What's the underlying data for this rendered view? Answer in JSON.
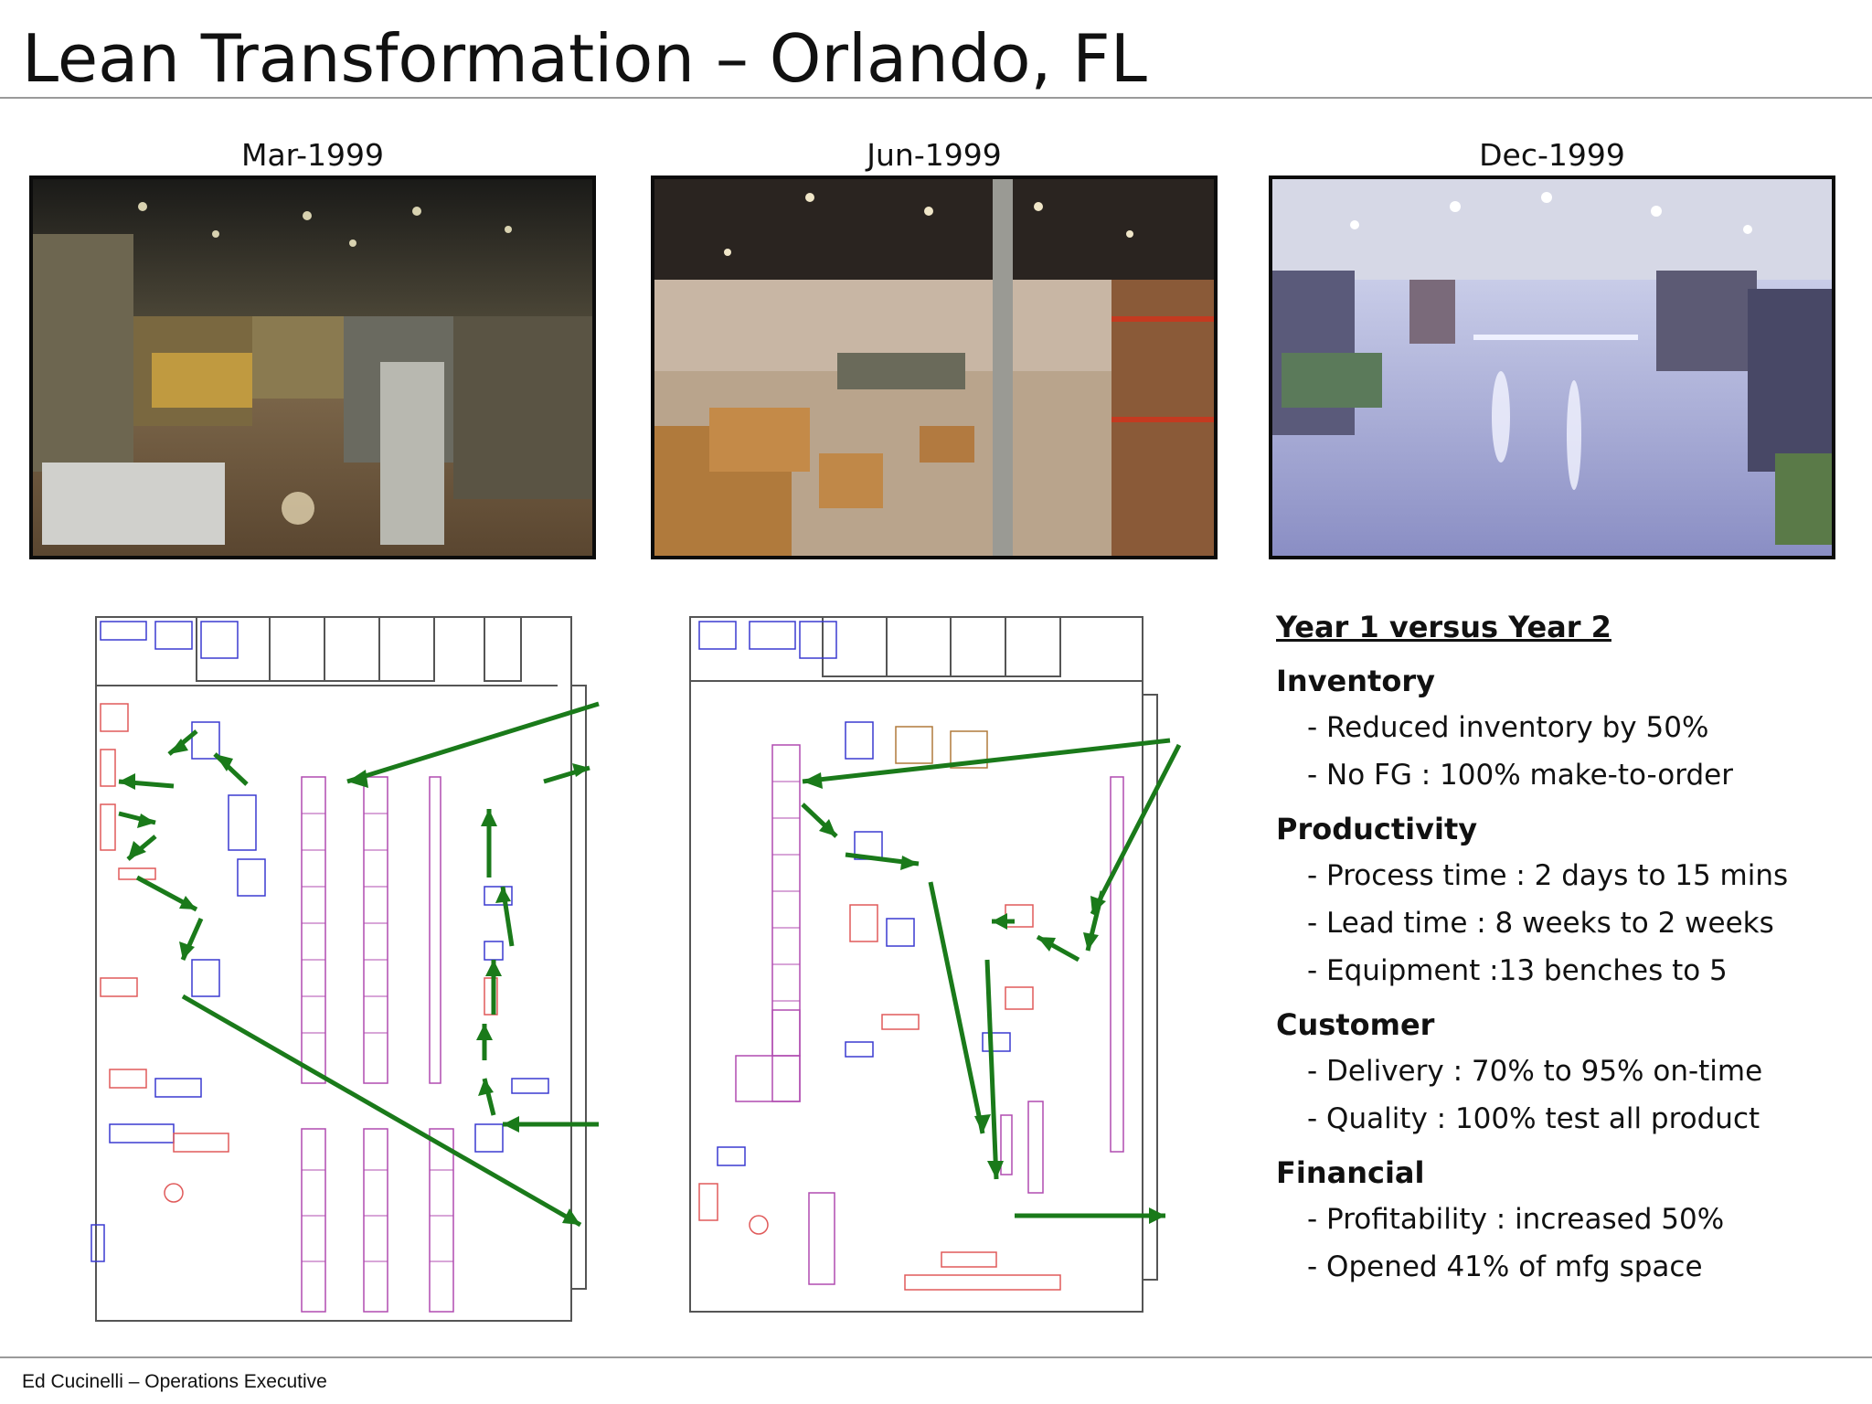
{
  "slide": {
    "title": "Lean Transformation – Orlando, FL",
    "footer": "Ed Cucinelli – Operations Executive"
  },
  "photos": [
    {
      "label": "Mar-1999"
    },
    {
      "label": "Jun-1999"
    },
    {
      "label": "Dec-1999"
    }
  ],
  "summary": {
    "heading": "Year 1 versus Year 2",
    "sections": [
      {
        "name": "Inventory",
        "items": [
          "- Reduced inventory by 50%",
          "- No FG : 100% make-to-order"
        ]
      },
      {
        "name": "Productivity",
        "items": [
          "- Process time : 2 days to 15 mins",
          "- Lead time : 8 weeks to 2 weeks",
          "- Equipment :13 benches to 5"
        ]
      },
      {
        "name": "Customer",
        "items": [
          "- Delivery : 70% to 95% on-time",
          "- Quality : 100% test all product"
        ]
      },
      {
        "name": "Financial",
        "items": [
          "- Profitability : increased 50%",
          "- Opened 41% of mfg space"
        ]
      }
    ]
  },
  "colors": {
    "arrow": "#1a7a1a",
    "rack": "#b04cb0",
    "bench_red": "#e05a5a",
    "bench_blue": "#3a3ad0",
    "wall": "#555555"
  }
}
